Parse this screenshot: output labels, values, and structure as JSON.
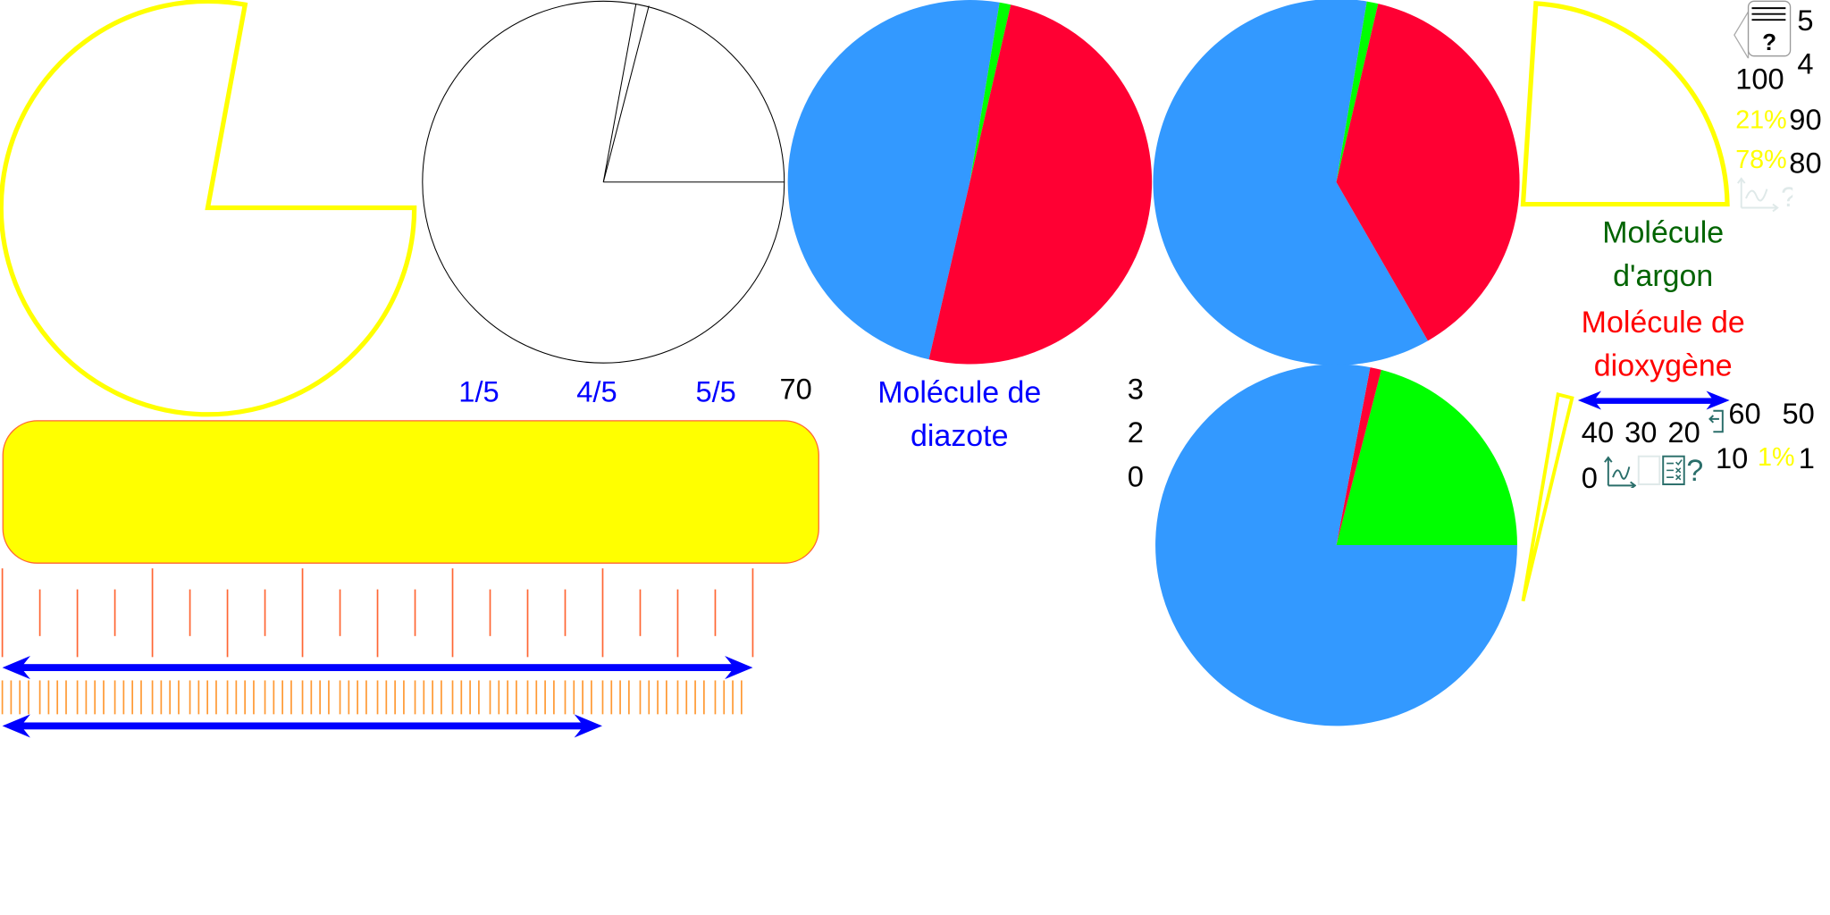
{
  "labels": {
    "fractions": [
      "1/5",
      "4/5",
      "5/5"
    ],
    "scale_numbers": [
      "100",
      "90",
      "80",
      "70",
      "60",
      "50",
      "40",
      "30",
      "20",
      "10",
      "0"
    ],
    "counters": [
      "5",
      "4",
      "3",
      "2",
      "1",
      "0"
    ],
    "percent_21": "21%",
    "percent_78": "78%",
    "percent_1": "1%",
    "diazote": [
      "Molécule de",
      "diazote"
    ],
    "argon": [
      "Molécule",
      "d'argon"
    ],
    "dioxygene": [
      "Molécule de",
      "dioxygène"
    ]
  },
  "colors": {
    "nitrogen": "#3399ff",
    "oxygen": "#ff0033",
    "argon": "#00ff00",
    "highlight": "#ffff00",
    "arrow": "#0000ff",
    "ticks": "#ff6633",
    "icons": "#2a6e6a"
  },
  "icons": [
    "help-card-icon",
    "chart-icon",
    "checklist-icon",
    "exit-icon",
    "question-icon"
  ],
  "chart_data": [
    {
      "type": "pie",
      "slices": [
        {
          "label": "diazote",
          "value": 49,
          "color": "#3399ff"
        },
        {
          "label": "argon",
          "value": 1,
          "color": "#00ff00"
        },
        {
          "label": "dioxygène",
          "value": 50,
          "color": "#ff0033"
        }
      ]
    },
    {
      "type": "pie",
      "slices": [
        {
          "label": "diazote",
          "value": 61,
          "color": "#3399ff"
        },
        {
          "label": "argon",
          "value": 1,
          "color": "#00ff00"
        },
        {
          "label": "dioxygène",
          "value": 38,
          "color": "#ff0033"
        }
      ]
    },
    {
      "type": "pie",
      "slices": [
        {
          "label": "diazote",
          "value": 78,
          "color": "#3399ff"
        },
        {
          "label": "dioxygène",
          "value": 1,
          "color": "#ff0033"
        },
        {
          "label": "argon",
          "value": 21,
          "color": "#00ff00"
        }
      ]
    }
  ]
}
